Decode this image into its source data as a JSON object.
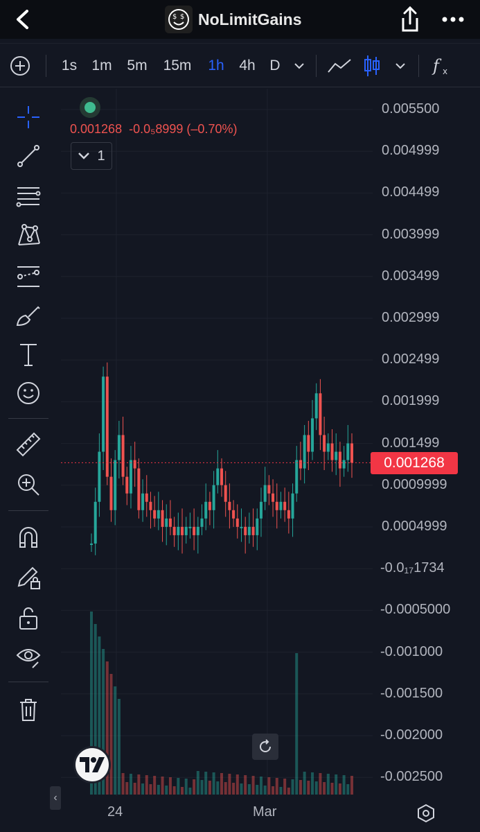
{
  "header": {
    "title": "NoLimitGains",
    "icons": {
      "back": "chevron-left-icon",
      "share": "share-icon",
      "more": "more-dots-icon",
      "logo": "money-eyes-emoji-icon"
    }
  },
  "toolbar": {
    "intervals": [
      "1s",
      "1m",
      "5m",
      "15m",
      "1h",
      "4h",
      "D"
    ],
    "active_interval": "1h",
    "icons": [
      "plus-circle-icon",
      "chevron-down-icon",
      "line-chart-icon",
      "candles-icon",
      "chevron-down-icon",
      "fx-icon"
    ]
  },
  "legend": {
    "price": "0.001268",
    "change": "-0.0₅8999",
    "change_pct": "(–0.70%)",
    "series_count": "1"
  },
  "last_price_label": "0.001268",
  "colors": {
    "up": "#26a69a",
    "down": "#ef5350",
    "accent": "#2962ff",
    "last_price_bg": "#f23645"
  },
  "tools": [
    "crosshair-icon",
    "trendline-icon",
    "fib-lines-icon",
    "pattern-icon",
    "projection-icon",
    "brush-icon",
    "text-icon",
    "emoji-icon",
    "ruler-icon",
    "zoom-in-icon",
    "magnet-icon",
    "lock-drawing-icon",
    "unlock-icon",
    "eye-icon",
    "trash-icon"
  ],
  "chart_data": {
    "type": "candlestick",
    "price_scale": [
      "0.005500",
      "0.004999",
      "0.004499",
      "0.003999",
      "0.003499",
      "0.002999",
      "0.002499",
      "0.001999",
      "0.001499",
      "0.0009999",
      "0.0004999",
      "-0.0₁₇1734",
      "-0.0005000",
      "-0.001000",
      "-0.001500",
      "-0.002000",
      "-0.002500"
    ],
    "x_labels": [
      "24",
      "Mar"
    ],
    "last_price": 0.001268,
    "ylim": [
      -0.0027,
      0.0056
    ],
    "close_series": [
      0.0003,
      0.0008,
      0.0014,
      0.0023,
      0.0011,
      0.0007,
      0.0013,
      0.0016,
      0.0011,
      0.0009,
      0.0013,
      0.0012,
      0.0007,
      0.0009,
      0.0008,
      0.0007,
      0.0006,
      0.0007,
      0.0005,
      0.0006,
      0.0005,
      0.0004,
      0.0005,
      0.0004,
      0.0005,
      0.0005,
      0.0004,
      0.0005,
      0.0006,
      0.0008,
      0.0007,
      0.001,
      0.0012,
      0.001,
      0.0008,
      0.0007,
      0.0006,
      0.0005,
      0.0005,
      0.0004,
      0.0005,
      0.0004,
      0.0006,
      0.0008,
      0.001,
      0.0009,
      0.0008,
      0.0007,
      0.0008,
      0.0007,
      0.0006,
      0.0009,
      0.0013,
      0.0012,
      0.0016,
      0.0014,
      0.0018,
      0.0021,
      0.0016,
      0.0014,
      0.0015,
      0.0013,
      0.0014,
      0.0012,
      0.0013,
      0.0015,
      0.001268
    ]
  }
}
